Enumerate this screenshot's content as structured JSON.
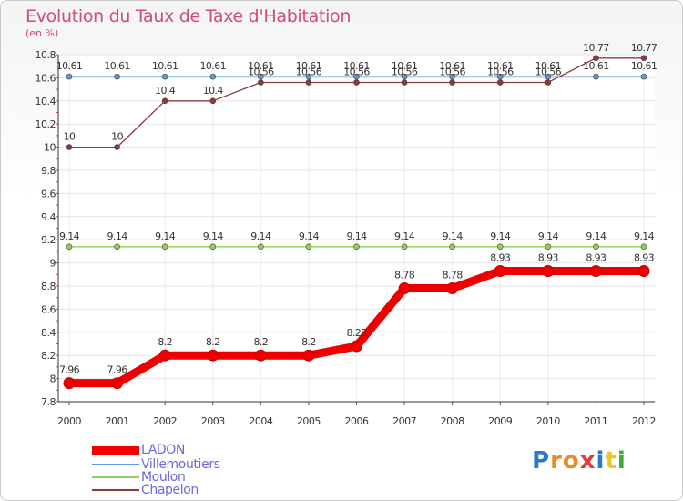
{
  "header": {
    "title": "Evolution du Taux de Taxe d'Habitation",
    "unit": "(en %)"
  },
  "logo": {
    "text": "Proxiti",
    "letter_colors": [
      "#2a78c8",
      "#e8892a",
      "#e8892a",
      "#e83a3a",
      "#2a78c8",
      "#e8c82a",
      "#3aaa3a"
    ]
  },
  "chart_data": {
    "type": "line",
    "title": "Evolution du Taux de Taxe d'Habitation",
    "ylabel": "(en %)",
    "xlabel": "",
    "x": [
      "2000",
      "2001",
      "2002",
      "2003",
      "2004",
      "2005",
      "2006",
      "2007",
      "2008",
      "2009",
      "2010",
      "2011",
      "2012"
    ],
    "ylim": [
      7.8,
      10.8
    ],
    "yticks": [
      "7.8",
      "8",
      "8.2",
      "8.4",
      "8.6",
      "8.8",
      "9",
      "9.2",
      "9.4",
      "9.6",
      "9.8",
      "10",
      "10.2",
      "10.4",
      "10.6",
      "10.8"
    ],
    "legend_position": "bottom-left",
    "series": [
      {
        "name": "LADON",
        "color": "#ee0000",
        "values": [
          7.96,
          7.96,
          8.2,
          8.2,
          8.2,
          8.2,
          8.28,
          8.78,
          8.78,
          8.93,
          8.93,
          8.93,
          8.93
        ],
        "labels": [
          "7.96",
          "7.96",
          "8.2",
          "8.2",
          "8.2",
          "8.2",
          "8.28",
          "8.78",
          "8.78",
          "8.93",
          "8.93",
          "8.93",
          "8.93"
        ]
      },
      {
        "name": "Villemoutiers",
        "color": "#5b9bd5",
        "values": [
          10.61,
          10.61,
          10.61,
          10.61,
          10.61,
          10.61,
          10.61,
          10.61,
          10.61,
          10.61,
          10.61,
          10.61,
          10.61
        ],
        "labels": [
          "10.61",
          "10.61",
          "10.61",
          "10.61",
          "10.61",
          "10.61",
          "10.61",
          "10.61",
          "10.61",
          "10.61",
          "10.61",
          "10.61",
          "10.61"
        ]
      },
      {
        "name": "Moulon",
        "color": "#8ed05a",
        "values": [
          9.14,
          9.14,
          9.14,
          9.14,
          9.14,
          9.14,
          9.14,
          9.14,
          9.14,
          9.14,
          9.14,
          9.14,
          9.14
        ],
        "labels": [
          "9.14",
          "9.14",
          "9.14",
          "9.14",
          "9.14",
          "9.14",
          "9.14",
          "9.14",
          "9.14",
          "9.14",
          "9.14",
          "9.14",
          "9.14"
        ]
      },
      {
        "name": "Chapelon",
        "color": "#8b3a3a",
        "values": [
          10,
          10,
          10.4,
          10.4,
          10.56,
          10.56,
          10.56,
          10.56,
          10.56,
          10.56,
          10.56,
          10.77,
          10.77
        ],
        "labels": [
          "10",
          "10",
          "10.4",
          "10.4",
          "10.56",
          "10.56",
          "10.56",
          "10.56",
          "10.56",
          "10.56",
          "10.56",
          "10.77",
          "10.77"
        ]
      }
    ]
  }
}
